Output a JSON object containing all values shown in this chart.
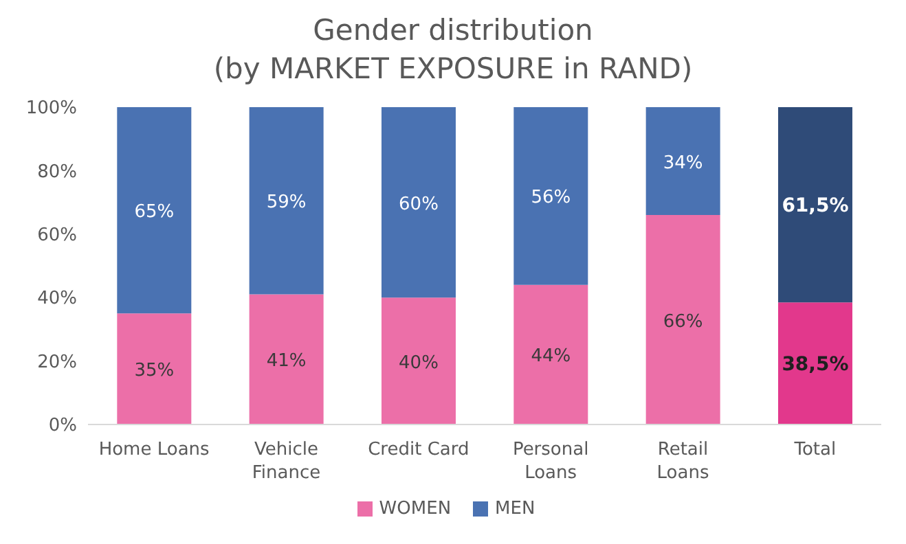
{
  "chart_data": {
    "type": "bar",
    "title": "Gender distribution\n(by MARKET EXPOSURE in RAND)",
    "categories": [
      "Home Loans",
      "Vehicle Finance",
      "Credit Card",
      "Personal Loans",
      "Retail Loans",
      "Total"
    ],
    "stacked": true,
    "series": [
      {
        "name": "WOMEN",
        "color": "#ec6fa8",
        "colors": [
          "#ec6fa8",
          "#ec6fa8",
          "#ec6fa8",
          "#ec6fa8",
          "#ec6fa8",
          "#e2388c"
        ],
        "values": [
          35,
          41,
          40,
          44,
          66,
          38.5
        ],
        "value_labels": [
          "35%",
          "41%",
          "40%",
          "44%",
          "66%",
          "38,5%"
        ]
      },
      {
        "name": "MEN",
        "color": "#4a72b2",
        "colors": [
          "#4a72b2",
          "#4a72b2",
          "#4a72b2",
          "#4a72b2",
          "#4a72b2",
          "#2f4b78"
        ],
        "values": [
          65,
          59,
          60,
          56,
          34,
          61.5
        ],
        "value_labels": [
          "65%",
          "59%",
          "60%",
          "56%",
          "34%",
          "61,5%"
        ]
      }
    ],
    "ylim": [
      0,
      100
    ],
    "yticks": [
      {
        "value": 0,
        "label": "0%"
      },
      {
        "value": 20,
        "label": "20%"
      },
      {
        "value": 40,
        "label": "40%"
      },
      {
        "value": 60,
        "label": "60%"
      },
      {
        "value": 80,
        "label": "80%"
      },
      {
        "value": 100,
        "label": "100%"
      }
    ],
    "grid": false,
    "legend": "bottom"
  }
}
